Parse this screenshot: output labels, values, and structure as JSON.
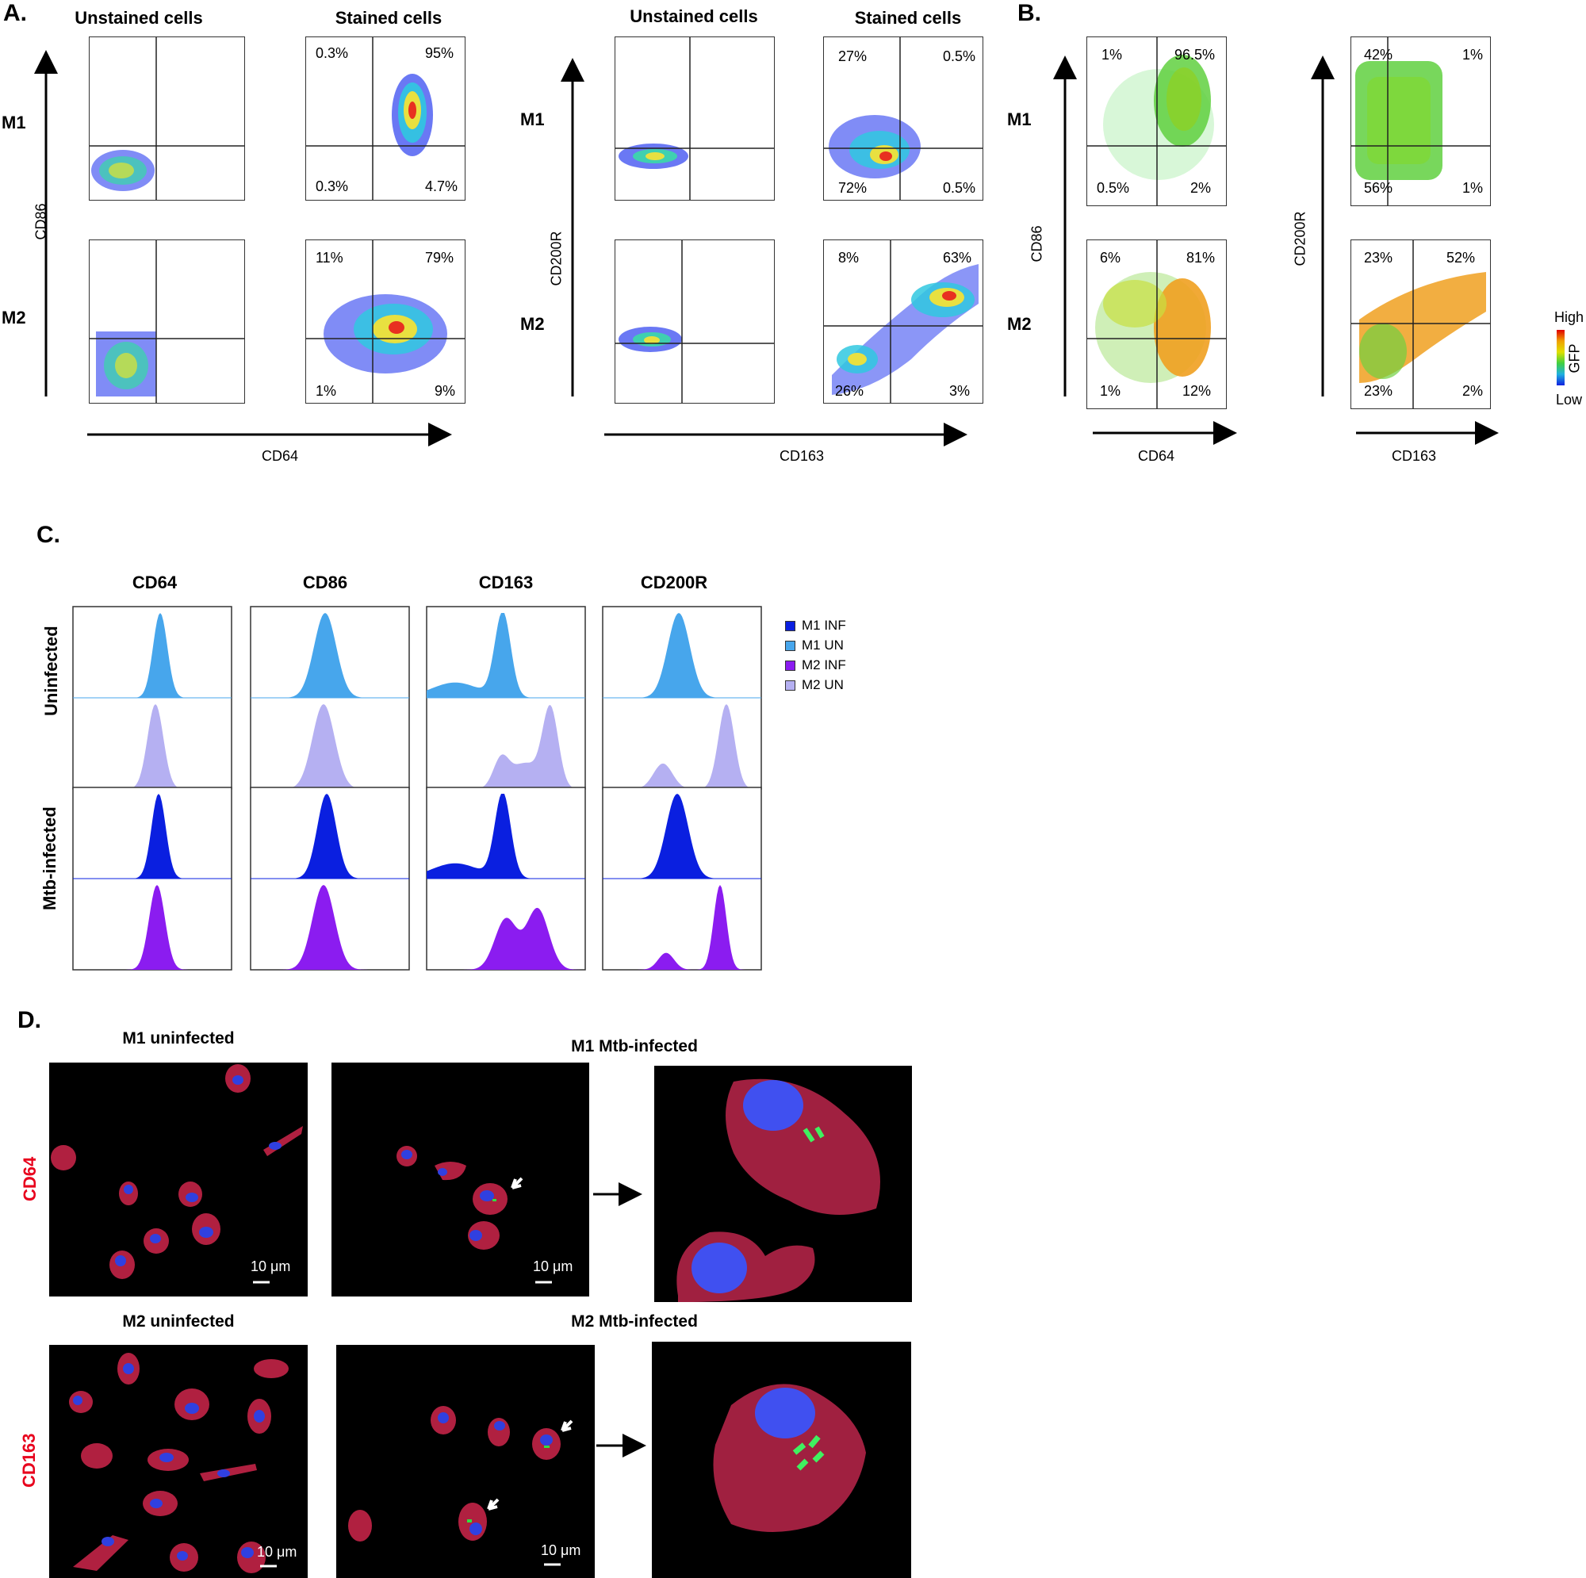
{
  "panels": {
    "A": {
      "letter": "A.",
      "headers": [
        "Unstained cells",
        "Stained cells",
        "Unstained cells",
        "Stained cells"
      ],
      "rows": [
        "M1",
        "M2",
        "M1",
        "M2"
      ],
      "ylabels": [
        "CD86",
        "CD200R"
      ],
      "xlabels": [
        "CD64",
        "CD163"
      ],
      "quadrants": {
        "cd64_m1": {
          "ul": "0.3%",
          "ur": "95%",
          "ll": "0.3%",
          "lr": "4.7%"
        },
        "cd64_m2": {
          "ul": "11%",
          "ur": "79%",
          "ll": "1%",
          "lr": "9%"
        },
        "cd163_m1": {
          "ul": "27%",
          "ur": "0.5%",
          "ll": "72%",
          "lr": "0.5%"
        },
        "cd163_m2": {
          "ul": "8%",
          "ur": "63%",
          "ll": "26%",
          "lr": "3%"
        }
      }
    },
    "B": {
      "letter": "B.",
      "rows": [
        "M1",
        "M2"
      ],
      "ylabels": [
        "CD86",
        "CD200R"
      ],
      "xlabels": [
        "CD64",
        "CD163"
      ],
      "quadrants": {
        "cd64_m1": {
          "ul": "1%",
          "ur": "96.5%",
          "ll": "0.5%",
          "lr": "2%"
        },
        "cd64_m2": {
          "ul": "6%",
          "ur": "81%",
          "ll": "1%",
          "lr": "12%"
        },
        "cd163_m1": {
          "ul": "42%",
          "ur": "1%",
          "ll": "56%",
          "lr": "1%"
        },
        "cd163_m2": {
          "ul": "23%",
          "ur": "52%",
          "ll": "23%",
          "lr": "2%"
        }
      },
      "colorbar": {
        "high": "High",
        "low": "Low",
        "label": "GFP"
      }
    },
    "C": {
      "letter": "C.",
      "columns": [
        "CD64",
        "CD86",
        "CD163",
        "CD200R"
      ],
      "rows": [
        "Uninfected",
        "Mtb-infected"
      ],
      "legend": [
        {
          "label": "M1 INF",
          "color": "#0a1fe0"
        },
        {
          "label": "M1 UN",
          "color": "#47a6ec"
        },
        {
          "label": "M2 INF",
          "color": "#8b1cf0"
        },
        {
          "label": "M2 UN",
          "color": "#b5b0f2"
        }
      ]
    },
    "D": {
      "letter": "D.",
      "titles": [
        "M1 uninfected",
        "M1 Mtb-infected",
        "M2 uninfected",
        "M2 Mtb-infected"
      ],
      "row_labels": [
        "CD64",
        "CD163"
      ],
      "scale_bar": "10 μm",
      "row_label_color": "#e8001c"
    }
  }
}
